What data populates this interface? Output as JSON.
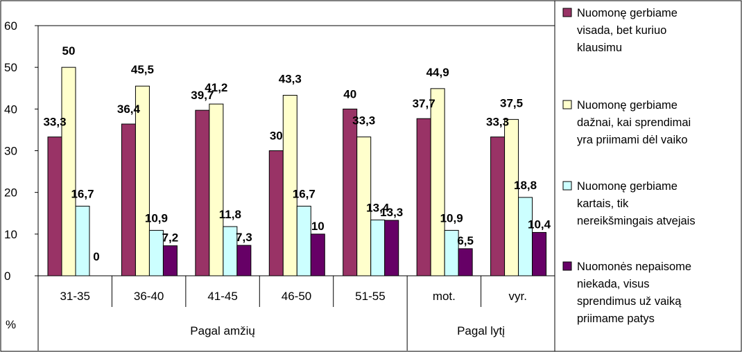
{
  "chart_data": {
    "type": "bar",
    "ylabel": "%",
    "ylim": [
      0,
      60
    ],
    "yticks": [
      "0",
      "10",
      "20",
      "30",
      "40",
      "50",
      "60"
    ],
    "categories": [
      "31-35",
      "36-40",
      "41-45",
      "46-50",
      "51-55",
      "mot.",
      "vyr."
    ],
    "groups": [
      {
        "label": "Pagal amžių",
        "span": 5
      },
      {
        "label": "Pagal lytį",
        "span": 2
      }
    ],
    "legend_position": "right",
    "series": [
      {
        "name": "Nuomonę gerbiame visada, bet kuriuo klausimu",
        "legend_lines": [
          "Nuomonę gerbiame",
          "visada, bet kuriuo",
          "klausimu"
        ],
        "color": "#993366",
        "values": [
          33.3,
          36.4,
          39.7,
          30,
          40,
          37.7,
          33.3
        ],
        "labels": [
          "33,3",
          "36,4",
          "39,7",
          "30",
          "40",
          "37,7",
          "33,3"
        ]
      },
      {
        "name": "Nuomonę gerbiame dažnai, kai sprendimai yra priimami dėl vaiko",
        "legend_lines": [
          "Nuomonę gerbiame",
          "dažnai, kai sprendimai",
          "yra priimami dėl vaiko"
        ],
        "color": "#FFFFCC",
        "values": [
          50,
          45.5,
          41.2,
          43.3,
          33.3,
          44.9,
          37.5
        ],
        "labels": [
          "50",
          "45,5",
          "41,2",
          "43,3",
          "33,3",
          "44,9",
          "37,5"
        ]
      },
      {
        "name": "Nuomonę gerbiame kartais, tik nereikšmingais atvejais",
        "legend_lines": [
          "Nuomonę gerbiame",
          "kartais, tik",
          "nereikšmingais atvejais"
        ],
        "color": "#CCFFFF",
        "values": [
          16.7,
          10.9,
          11.8,
          16.7,
          13.4,
          10.9,
          18.8
        ],
        "labels": [
          "16,7",
          "10,9",
          "11,8",
          "16,7",
          "13,4",
          "10,9",
          "18,8"
        ]
      },
      {
        "name": "Nuomonės nepaisome niekada, visus sprendimus už vaiką priimame patys",
        "legend_lines": [
          "Nuomonės nepaisome",
          "niekada, visus",
          "sprendimus už vaiką",
          "priimame patys"
        ],
        "color": "#660066",
        "values": [
          0,
          7.2,
          7.3,
          10,
          13.3,
          6.5,
          10.4
        ],
        "labels": [
          "0",
          "7,2",
          "7,3",
          "10",
          "13,3",
          "6,5",
          "10,4"
        ]
      }
    ]
  }
}
